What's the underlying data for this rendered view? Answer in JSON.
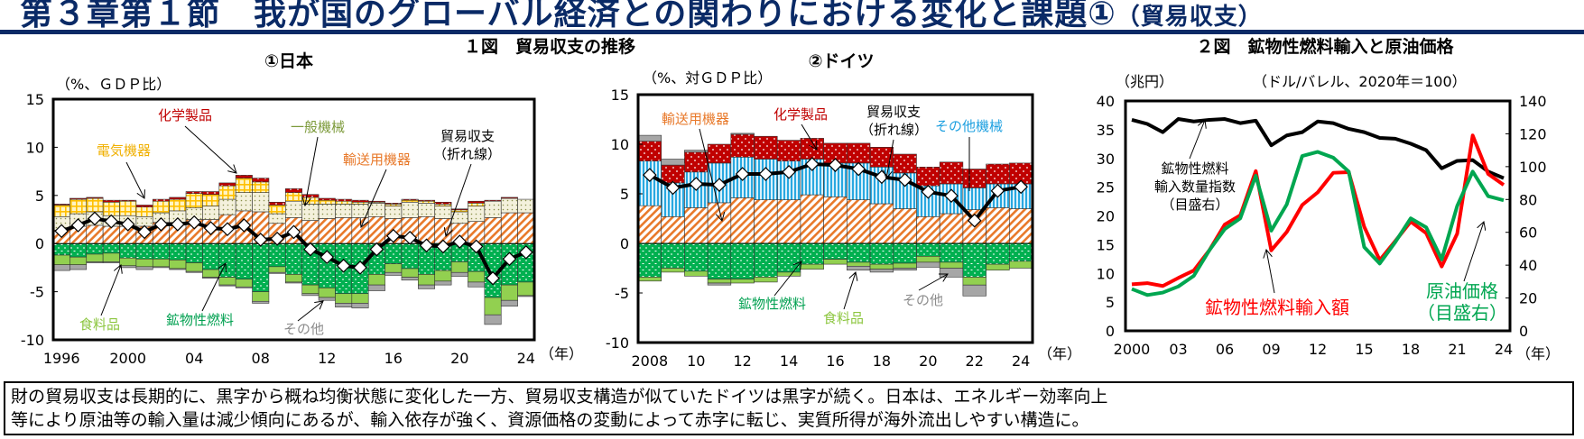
{
  "page": {
    "title": "第３章第１節　我が国のグローバル経済との関わりにおける変化と課題①",
    "title_suffix": "（貿易収支）",
    "summary_lines": [
      "財の貿易収支は長期的に、黒字から概ね均衡状態に変化した一方、貿易収支構造が似ていたドイツは黒字が続く。日本は、エネルギー効率向上",
      "等により原油等の輸入量は減少傾向にあるが、輸入依存が強く、資源価格の変動によって赤字に転じ、実質所得が海外流出しやすい構造に。"
    ]
  },
  "figure1": {
    "title": "１図　貿易収支の推移"
  },
  "figure2": {
    "title": "２図　鉱物性燃料輸入と原油価格"
  },
  "colors": {
    "title_navy": "#0a2a66",
    "transport": "#e8792a",
    "general_machinery": "#9aa05a",
    "electrical": "#ffc000",
    "chemicals": "#c00000",
    "other_machinery": "#29a8e0",
    "fuel": "#00b050",
    "food": "#92d050",
    "other": "#a6a6a6",
    "balance": "#000000",
    "import_value": "#ff0000",
    "crude_price": "#00a650",
    "import_volume": "#000000"
  },
  "chart_data": [
    {
      "type": "bar",
      "stacked": true,
      "title": "①日本",
      "ylabel": "（%、ＧＤＰ比）",
      "xunit": "（年）",
      "ylim": [
        -10,
        15
      ],
      "yticks": [
        -10,
        -5,
        0,
        5,
        10,
        15
      ],
      "categories": [
        1996,
        1997,
        1998,
        1999,
        2000,
        2001,
        2002,
        2003,
        2004,
        2005,
        2006,
        2007,
        2008,
        2009,
        2010,
        2011,
        2012,
        2013,
        2014,
        2015,
        2016,
        2017,
        2018,
        2019,
        2020,
        2021,
        2022,
        2023,
        2024
      ],
      "xtick_labels": [
        {
          "year": 1996,
          "label": "1996"
        },
        {
          "year": 2000,
          "label": "2000"
        },
        {
          "year": 2004,
          "label": "04"
        },
        {
          "year": 2008,
          "label": "08"
        },
        {
          "year": 2012,
          "label": "12"
        },
        {
          "year": 2016,
          "label": "16"
        },
        {
          "year": 2020,
          "label": "20"
        },
        {
          "year": 2024,
          "label": "24"
        }
      ],
      "series": [
        {
          "key": "transport",
          "name": "輸送用機器",
          "values": [
            1.4,
            1.8,
            1.9,
            1.8,
            1.8,
            1.8,
            2.2,
            2.2,
            2.5,
            2.5,
            3.0,
            3.4,
            3.3,
            2.1,
            2.7,
            2.4,
            2.6,
            2.7,
            2.7,
            2.8,
            2.6,
            2.7,
            2.8,
            2.6,
            2.1,
            2.3,
            2.7,
            3.2,
            3.2
          ]
        },
        {
          "key": "general_machinery",
          "name": "一般機械",
          "values": [
            1.4,
            1.3,
            1.4,
            1.1,
            1.1,
            1.0,
            1.0,
            1.2,
            1.2,
            1.4,
            1.6,
            1.9,
            2.0,
            1.0,
            1.7,
            1.7,
            1.5,
            1.4,
            1.4,
            1.4,
            1.3,
            1.6,
            1.4,
            1.3,
            1.2,
            1.6,
            1.7,
            1.5,
            1.4
          ]
        },
        {
          "key": "electrical",
          "name": "電気機器",
          "values": [
            1.2,
            1.5,
            1.4,
            1.4,
            1.5,
            1.0,
            1.2,
            1.2,
            1.5,
            1.2,
            1.4,
            1.5,
            1.1,
            0.9,
            0.9,
            0.7,
            0.4,
            0.3,
            0.2,
            0.1,
            0.2,
            0.2,
            0.2,
            0.2,
            0.2,
            0.3,
            0.0,
            0.0,
            0.0
          ]
        },
        {
          "key": "chemicals",
          "name": "化学製品",
          "values": [
            0.1,
            0.1,
            0.1,
            0.2,
            0.1,
            0.2,
            0.2,
            0.2,
            0.2,
            0.3,
            0.3,
            0.3,
            0.4,
            0.3,
            0.4,
            0.3,
            0.2,
            0.2,
            0.2,
            0.1,
            0.1,
            0.1,
            0.1,
            0.2,
            0.1,
            0.2,
            0.1,
            0.1,
            0.0
          ]
        },
        {
          "key": "fuel",
          "name": "鉱物性燃料",
          "values": [
            -1.2,
            -1.4,
            -1.1,
            -1.0,
            -1.5,
            -1.6,
            -1.6,
            -1.7,
            -2.0,
            -2.7,
            -3.5,
            -3.7,
            -5.0,
            -2.4,
            -3.2,
            -4.3,
            -4.6,
            -5.2,
            -5.2,
            -3.2,
            -2.1,
            -2.6,
            -3.2,
            -2.8,
            -1.9,
            -2.9,
            -5.6,
            -4.3,
            -4.0
          ]
        },
        {
          "key": "food",
          "name": "食料品",
          "values": [
            -1.0,
            -0.8,
            -0.8,
            -0.9,
            -0.8,
            -0.8,
            -0.8,
            -0.9,
            -0.9,
            -0.8,
            -0.8,
            -0.8,
            -1.0,
            -0.6,
            -0.8,
            -0.9,
            -1.0,
            -1.0,
            -1.0,
            -1.1,
            -0.9,
            -0.9,
            -1.1,
            -1.1,
            -1.1,
            -1.1,
            -1.8,
            -1.6,
            -1.4
          ]
        },
        {
          "key": "other",
          "name": "その他",
          "values": [
            -0.6,
            -0.5,
            -0.1,
            -0.1,
            -0.2,
            -0.3,
            -0.1,
            -0.1,
            -0.1,
            -0.1,
            -0.1,
            -0.1,
            -0.2,
            -0.1,
            -0.1,
            -0.2,
            -0.3,
            -0.4,
            -0.5,
            -0.6,
            -0.3,
            -0.3,
            -0.4,
            -0.4,
            -0.4,
            -0.5,
            -1.0,
            -0.6,
            -0.1
          ]
        }
      ],
      "line": {
        "name": "貿易収支",
        "name_note": "（折れ線）",
        "values": [
          1.3,
          1.9,
          2.6,
          2.3,
          2.0,
          1.2,
          2.0,
          2.0,
          2.2,
          1.6,
          1.5,
          1.9,
          0.4,
          0.5,
          1.2,
          -0.6,
          -1.4,
          -2.3,
          -2.5,
          -0.6,
          0.8,
          0.6,
          -0.2,
          -0.3,
          0.2,
          -0.3,
          -3.6,
          -1.6,
          -0.9
        ]
      }
    },
    {
      "type": "bar",
      "stacked": true,
      "title": "②ドイツ",
      "ylabel": "（%、対ＧＤＰ比）",
      "xunit": "（年）",
      "ylim": [
        -10,
        15
      ],
      "yticks": [
        -10,
        -5,
        0,
        5,
        10,
        15
      ],
      "categories": [
        2008,
        2009,
        2010,
        2011,
        2012,
        2013,
        2014,
        2015,
        2016,
        2017,
        2018,
        2019,
        2020,
        2021,
        2022,
        2023,
        2024
      ],
      "xtick_labels": [
        {
          "year": 2008,
          "label": "2008"
        },
        {
          "year": 2010,
          "label": "10"
        },
        {
          "year": 2012,
          "label": "12"
        },
        {
          "year": 2014,
          "label": "14"
        },
        {
          "year": 2016,
          "label": "16"
        },
        {
          "year": 2018,
          "label": "18"
        },
        {
          "year": 2020,
          "label": "20"
        },
        {
          "year": 2022,
          "label": "22"
        },
        {
          "year": 2024,
          "label": "24"
        }
      ],
      "series": [
        {
          "key": "transport",
          "name": "輸送用機器",
          "values": [
            3.8,
            2.7,
            3.6,
            4.1,
            4.6,
            4.4,
            4.4,
            4.9,
            4.7,
            4.4,
            4.0,
            3.5,
            2.7,
            3.0,
            3.4,
            3.6,
            3.5
          ]
        },
        {
          "key": "other_machinery",
          "name": "その他機械",
          "values": [
            4.5,
            3.4,
            3.6,
            4.0,
            4.1,
            4.1,
            3.9,
            3.6,
            3.4,
            3.7,
            3.7,
            3.6,
            3.1,
            3.0,
            2.2,
            2.4,
            2.5
          ]
        },
        {
          "key": "chemicals",
          "name": "化学製品",
          "values": [
            2.0,
            1.8,
            2.0,
            1.9,
            2.3,
            2.3,
            2.1,
            2.1,
            2.0,
            2.0,
            2.0,
            1.9,
            1.9,
            2.2,
            1.9,
            2.0,
            2.1
          ]
        },
        {
          "key": "fuel",
          "name": "鉱物性燃料",
          "values": [
            -3.4,
            -2.5,
            -2.8,
            -3.6,
            -3.6,
            -3.4,
            -2.9,
            -2.1,
            -1.6,
            -1.9,
            -2.1,
            -2.0,
            -1.3,
            -1.9,
            -3.4,
            -2.1,
            -1.8
          ]
        },
        {
          "key": "food",
          "name": "食料品",
          "values": [
            -0.4,
            -0.4,
            -0.5,
            -0.4,
            -0.4,
            -0.5,
            -0.4,
            -0.5,
            -0.5,
            -0.4,
            -0.5,
            -0.5,
            -0.6,
            -0.6,
            -0.8,
            -0.6,
            -0.7
          ]
        },
        {
          "key": "other",
          "name": "その他",
          "values": [
            0.6,
            0.6,
            0.2,
            -0.2,
            0.1,
            0,
            0,
            0,
            0,
            -0.4,
            -0.3,
            -0.2,
            -0.5,
            -0.9,
            -1.1,
            0,
            0
          ]
        }
      ],
      "line": {
        "name": "貿易収支",
        "name_note": "（折れ線）",
        "values": [
          6.9,
          5.6,
          6.0,
          5.9,
          7.0,
          7.0,
          7.2,
          8.0,
          7.9,
          7.5,
          6.7,
          6.4,
          5.2,
          4.8,
          2.3,
          5.3,
          5.7
        ]
      }
    },
    {
      "type": "line",
      "title": "２図　鉱物性燃料輸入と原油価格",
      "ylabel_left": "（兆円）",
      "ylabel_right": "（ドル/バレル、2020年＝100）",
      "xunit": "（年）",
      "ylim_left": [
        0,
        40
      ],
      "ylim_right": [
        0,
        140
      ],
      "yticks_left": [
        0,
        5,
        10,
        15,
        20,
        25,
        30,
        35,
        40
      ],
      "yticks_right": [
        0,
        20,
        40,
        60,
        80,
        100,
        120,
        140
      ],
      "x": [
        2000,
        2001,
        2002,
        2003,
        2004,
        2005,
        2006,
        2007,
        2008,
        2009,
        2010,
        2011,
        2012,
        2013,
        2014,
        2015,
        2016,
        2017,
        2018,
        2019,
        2020,
        2021,
        2022,
        2023,
        2024
      ],
      "xtick_labels": [
        {
          "year": 2000,
          "label": "2000"
        },
        {
          "year": 2003,
          "label": "03"
        },
        {
          "year": 2006,
          "label": "06"
        },
        {
          "year": 2009,
          "label": "09"
        },
        {
          "year": 2012,
          "label": "12"
        },
        {
          "year": 2015,
          "label": "15"
        },
        {
          "year": 2018,
          "label": "18"
        },
        {
          "year": 2021,
          "label": "21"
        },
        {
          "year": 2024,
          "label": "24"
        }
      ],
      "series": [
        {
          "key": "import_volume",
          "name": "鉱物性燃料",
          "name_line2": "輸入数量指数",
          "axis_note": "（目盛右）",
          "axis": "right",
          "values": [
            128.5,
            126,
            121,
            129,
            127.5,
            128.5,
            129,
            126.5,
            128,
            113,
            119,
            121,
            127.5,
            126.5,
            123,
            121,
            117.5,
            117,
            114,
            110,
            99,
            103.5,
            104,
            97,
            93
          ]
        },
        {
          "key": "import_value",
          "name": "鉱物性燃料輸入額",
          "axis": "left",
          "values": [
            8.1,
            8.3,
            7.8,
            9.2,
            10.5,
            14.0,
            18.5,
            20.1,
            27.8,
            14.0,
            17.2,
            21.9,
            24.1,
            27.5,
            27.6,
            18.1,
            12.3,
            15.6,
            19.0,
            17.0,
            11.2,
            16.9,
            34.0,
            27.3,
            25.4
          ]
        },
        {
          "key": "crude_price",
          "name": "原油価格",
          "axis_note": "（目盛右）",
          "axis": "right",
          "values": [
            25.5,
            21.8,
            23.3,
            27,
            33.5,
            49,
            62,
            68.5,
            94.5,
            61,
            77,
            106.5,
            109,
            105.5,
            97,
            51,
            41,
            54,
            68.5,
            63,
            43.5,
            76,
            97,
            82,
            79.5
          ]
        }
      ]
    }
  ]
}
